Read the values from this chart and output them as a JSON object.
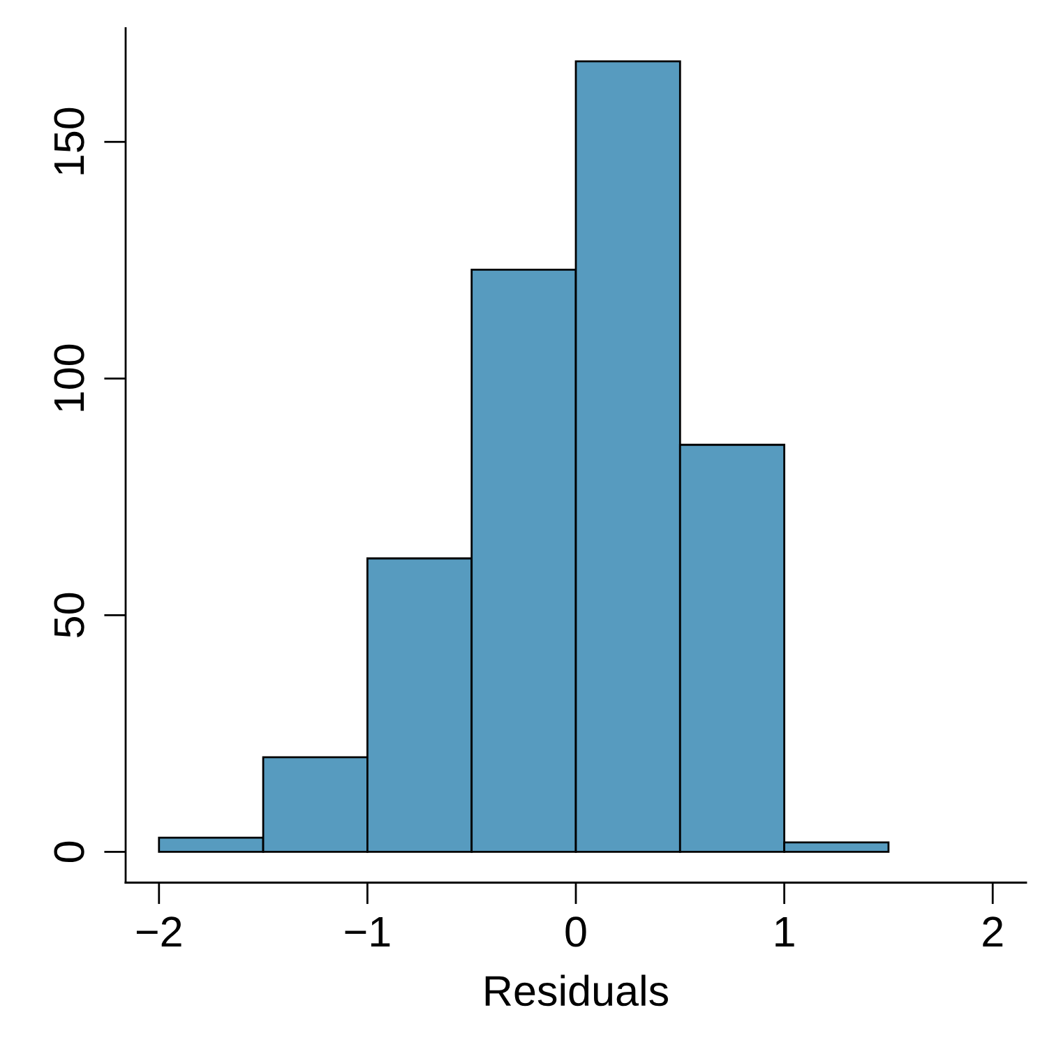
{
  "chart_data": {
    "type": "histogram",
    "xlabel": "Residuals",
    "bins": [
      -2,
      -1.5,
      -1,
      -0.5,
      0,
      0.5,
      1,
      1.5
    ],
    "values": [
      3,
      20,
      62,
      123,
      167,
      86,
      2
    ],
    "color": "#579bbf",
    "xlim": [
      -2.16,
      2.16
    ],
    "ylim": [
      -6.5,
      174
    ],
    "xticks": [
      {
        "value": -2,
        "label": "−2"
      },
      {
        "value": -1,
        "label": "−1"
      },
      0,
      1,
      2
    ],
    "yticks": [
      0,
      50,
      100,
      150
    ],
    "grid": false
  }
}
